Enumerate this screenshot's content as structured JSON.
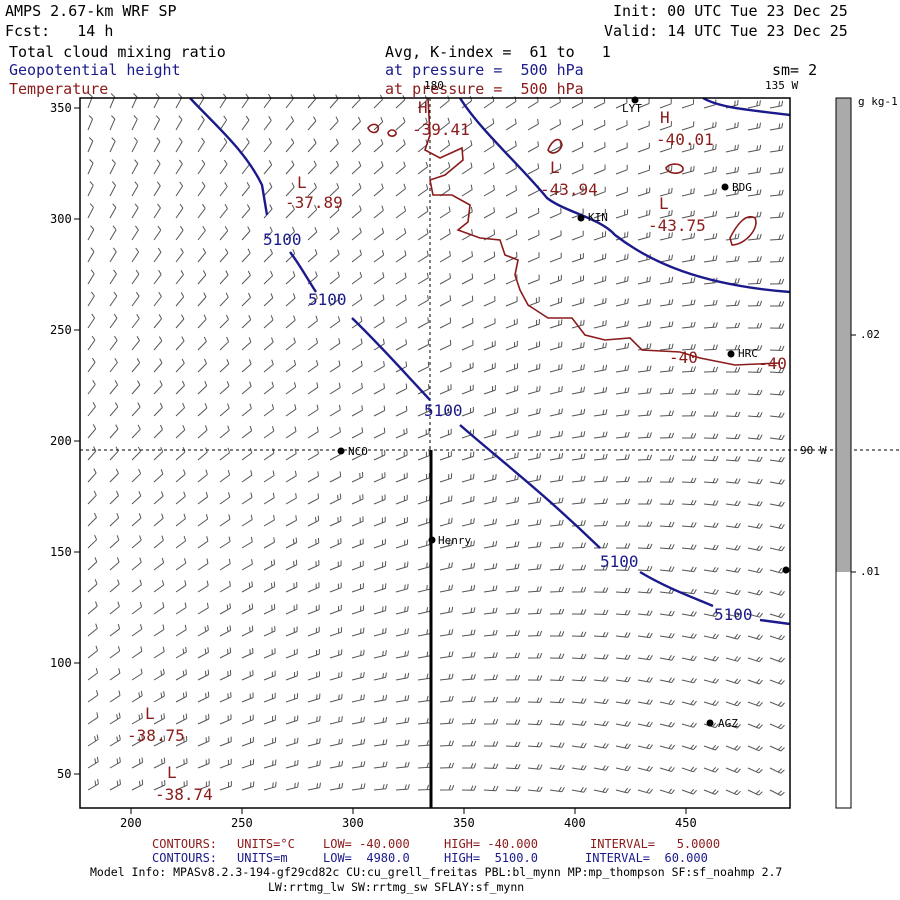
{
  "header": {
    "model": "AMPS 2.67-km WRF SP",
    "init": "Init: 00 UTC Tue 23 Dec 25",
    "fcst": "Fcst:   14 h",
    "valid": "Valid: 14 UTC Tue 23 Dec 25",
    "field1": "Total cloud mixing ratio",
    "field1_desc": "Avg, K-index =  61 to   1",
    "field2": "Geopotential height",
    "field2_desc": "at pressure =  500 hPa",
    "field3": "Temperature",
    "field3_desc": "at pressure =  500 hPa",
    "smoothing": "sm= 2"
  },
  "colors": {
    "height_contour": "#1a1a8c",
    "temp_contour": "#8b1a1a",
    "colorbar_shade": "#aaaaaa"
  },
  "axes": {
    "x_ticks": [
      "200",
      "250",
      "300",
      "350",
      "400",
      "450"
    ],
    "y_ticks": [
      "350",
      "300",
      "250",
      "200",
      "150",
      "100",
      "50"
    ]
  },
  "meridians": [
    "180",
    "90 W",
    "135 W"
  ],
  "colorbar": {
    "units": "g kg-1",
    "labels": [
      ".02",
      ".01"
    ]
  },
  "height_labels": [
    "5100",
    "5100",
    "5100",
    "5100",
    "5100"
  ],
  "temp_labels": {
    "L1": "L",
    "v1": "-37.89",
    "L2": "L",
    "v2": "-43.94",
    "L3": "L",
    "v3": "-43.75",
    "H1": "H",
    "v4": "-40.01",
    "H2": "H",
    "v5": "-39.41",
    "c1": "-40",
    "c2": "-40",
    "L4": "L",
    "v6": "-38.75",
    "L5": "L",
    "v7": "-38.74"
  },
  "stations": [
    "LYT",
    "BDG",
    "KIN",
    "HRC",
    "NCO",
    "Henry",
    "AGZ"
  ],
  "footer": {
    "contours1_label": "CONTOURS:",
    "contours1_units": "UNITS=°C",
    "contours1_low": "LOW= -40.000",
    "contours1_high": "HIGH= -40.000",
    "contours1_interval": "INTERVAL=   5.0000",
    "contours2_label": "CONTOURS:",
    "contours2_units": "UNITS=m",
    "contours2_low": "LOW=  4980.0",
    "contours2_high": "HIGH=  5100.0",
    "contours2_interval": "INTERVAL=  60.000",
    "model_info": "Model Info: MPASv8.2.3-194-gf29cd82c CU:cu_grell_freitas PBL:bl_mynn MP:mp_thompson SF:sf_noahmp 2.7",
    "model_info2": "LW:rrtmg_lw SW:rrtmg_sw SFLAY:sf_mynn"
  }
}
